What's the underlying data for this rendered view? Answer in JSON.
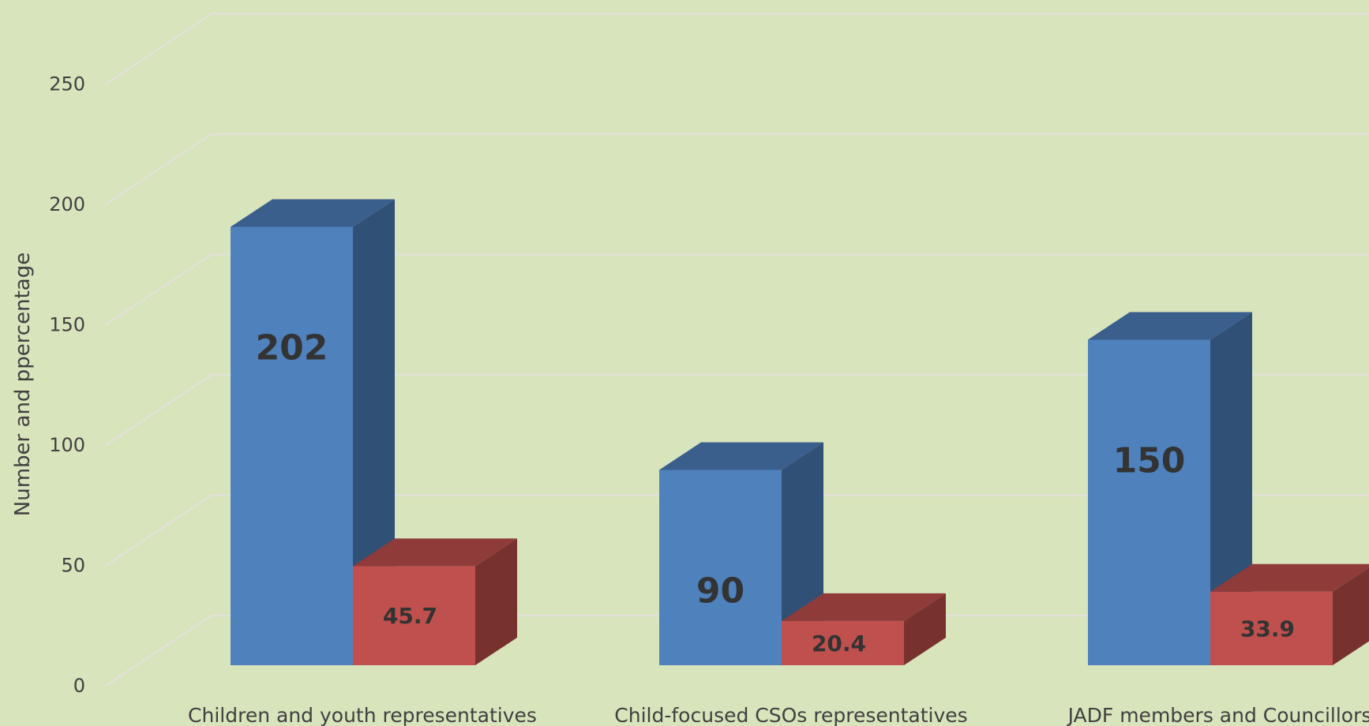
{
  "chart_data": {
    "type": "bar",
    "style": "3d-clustered-column",
    "title": "",
    "xlabel": "",
    "ylabel": "Number and ppercentage",
    "ylim": [
      0,
      250
    ],
    "yticks": [
      0,
      50,
      100,
      150,
      200,
      250
    ],
    "grid": true,
    "legend": "none",
    "categories": [
      "Children and youth representatives",
      "Child-focused CSOs representatives",
      "JADF members and Councillors"
    ],
    "series": [
      {
        "color": "#4f81bd",
        "values": [
          202,
          90,
          150
        ]
      },
      {
        "color": "#c0504d",
        "values": [
          45.7,
          20.4,
          33.9
        ]
      }
    ]
  }
}
